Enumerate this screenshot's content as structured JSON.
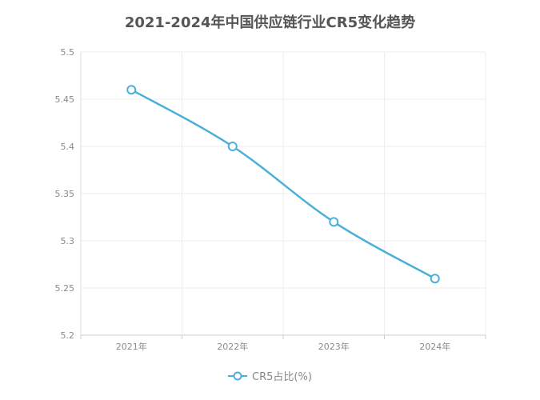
{
  "chart_data": {
    "type": "line",
    "title": "2021-2024年中国供应链行业CR5变化趋势",
    "categories": [
      "2021年",
      "2022年",
      "2023年",
      "2024年"
    ],
    "series": [
      {
        "name": "CR5占比(%)",
        "values": [
          5.46,
          5.4,
          5.32,
          5.26
        ]
      }
    ],
    "ylim": [
      5.2,
      5.5
    ],
    "yticks": [
      "5.2",
      "5.25",
      "5.3",
      "5.35",
      "5.4",
      "5.45",
      "5.5"
    ],
    "xlabel": "",
    "ylabel": "",
    "grid": true,
    "legend_position": "bottom-center",
    "line_color": "#4bb0d9"
  }
}
